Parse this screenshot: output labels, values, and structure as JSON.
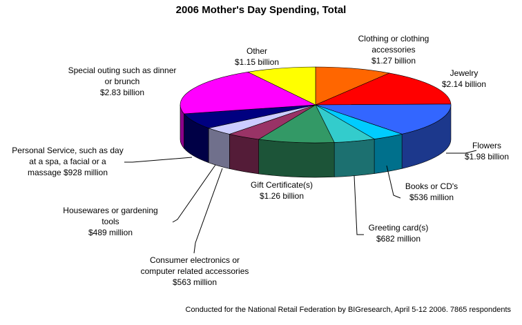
{
  "chart_data": {
    "type": "pie",
    "title": "2006 Mother's Day Spending, Total",
    "footnote": "Conducted for the National Retail Federation by BIGresearch, April 5-12 2006. 7865 respondents",
    "unit": "billion USD",
    "slices": [
      {
        "key": "clothing",
        "value": 1.27,
        "color": "#ff6600",
        "label_lines": [
          "Clothing or clothing",
          "accessories",
          "$1.27 billion"
        ]
      },
      {
        "key": "jewelry",
        "value": 2.14,
        "color": "#ff0000",
        "label_lines": [
          "Jewelry",
          "$2.14 billion"
        ]
      },
      {
        "key": "flowers",
        "value": 1.98,
        "color": "#3366ff",
        "label_lines": [
          "Flowers",
          "$1.98 billion"
        ]
      },
      {
        "key": "books",
        "value": 0.536,
        "color": "#00ccff",
        "label_lines": [
          "Books or CD's",
          "$536 million"
        ]
      },
      {
        "key": "greeting",
        "value": 0.682,
        "color": "#33cccc",
        "label_lines": [
          "Greeting card(s)",
          "$682 million"
        ]
      },
      {
        "key": "gift",
        "value": 1.26,
        "color": "#339966",
        "label_lines": [
          "Gift Certificate(s)",
          "$1.26  billion"
        ]
      },
      {
        "key": "electronics",
        "value": 0.563,
        "color": "#993366",
        "label_lines": [
          "Consumer electronics or",
          "computer related accessories",
          "$563 million"
        ]
      },
      {
        "key": "housewares",
        "value": 0.489,
        "color": "#ccccff",
        "label_lines": [
          "Housewares or gardening",
          "tools",
          "$489 million"
        ]
      },
      {
        "key": "personal",
        "value": 0.928,
        "color": "#000080",
        "label_lines": [
          "Personal Service, such as day",
          "at a spa, a facial or a",
          "massage  $928 million"
        ]
      },
      {
        "key": "outing",
        "value": 2.83,
        "color": "#ff00ff",
        "label_lines": [
          "Special outing such as dinner",
          "or brunch",
          "$2.83 billion"
        ]
      },
      {
        "key": "other",
        "value": 1.15,
        "color": "#ffff00",
        "label_lines": [
          "Other",
          "$1.15 billion"
        ]
      }
    ],
    "legend": "none",
    "style": "3d-pie"
  }
}
